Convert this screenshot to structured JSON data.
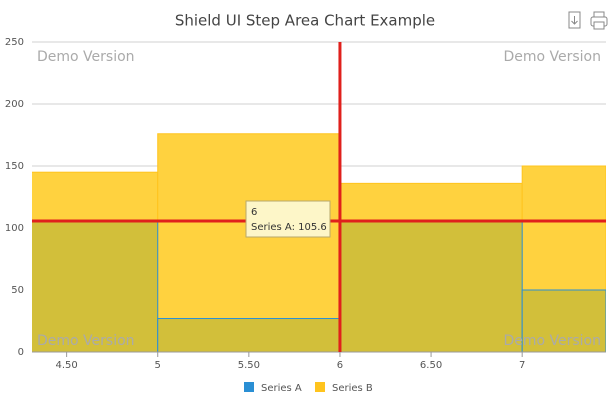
{
  "chart_data": {
    "type": "step-area",
    "title": "Shield UI Step Area Chart Example",
    "x": [
      4,
      5,
      6,
      7
    ],
    "series": [
      {
        "name": "Series A",
        "color": "#2a8fd4",
        "fill": "#d2bf3a",
        "values": [
          105,
          27,
          105.6,
          50
        ]
      },
      {
        "name": "Series B",
        "color": "#ffc41e",
        "fill": "#ffd23f",
        "values": [
          145,
          176,
          136,
          150
        ]
      }
    ],
    "xlim": [
      4.31,
      7.46
    ],
    "xticks": [
      {
        "value": 4.5,
        "label": "4.50"
      },
      5,
      {
        "value": 5.5,
        "label": "5.50"
      },
      6,
      {
        "value": 6.5,
        "label": "6.50"
      },
      7
    ],
    "ylim": [
      0,
      250
    ],
    "yticks": [
      0,
      50,
      100,
      150,
      200,
      250
    ],
    "grid": true,
    "crosshair": {
      "x": 6,
      "y": 105.6,
      "color": "#e0201c"
    },
    "tooltip": "Series A: 105.6",
    "watermarks": [
      "Demo Version",
      "Demo Version",
      "Demo Version",
      "Demo Version"
    ]
  }
}
